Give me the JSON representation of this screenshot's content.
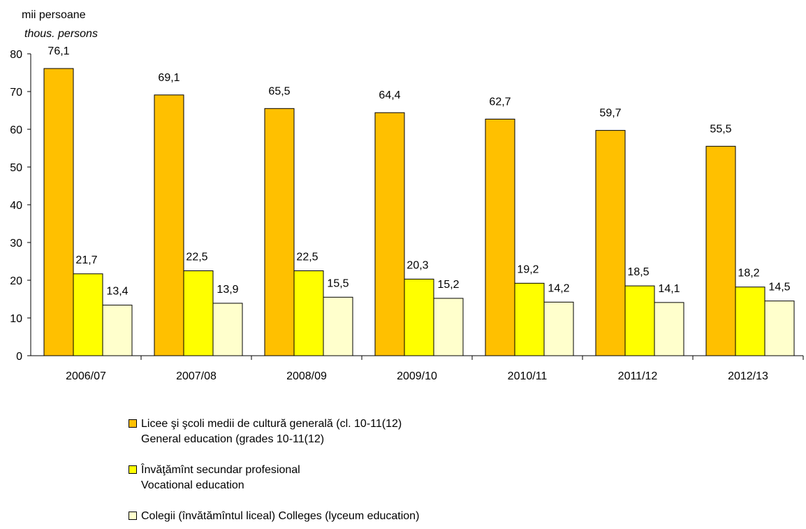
{
  "chart_data": {
    "type": "bar",
    "ylabel_ro": "mii persoane",
    "ylabel_en": "thous. persons",
    "ylim": [
      0,
      80
    ],
    "yticks": [
      0,
      10,
      20,
      30,
      40,
      50,
      60,
      70,
      80
    ],
    "grid": false,
    "legend_position": "bottom",
    "categories": [
      "2006/07",
      "2007/08",
      "2008/09",
      "2009/10",
      "2010/11",
      "2011/12",
      "2012/13"
    ],
    "series": [
      {
        "name_ro": "Licee şi şcoli medii de cultură generală (cl. 10-11(12)",
        "name_en": "General education (grades 10-11(12)",
        "color": "#FFC000",
        "values": [
          76.1,
          69.1,
          65.5,
          64.4,
          62.7,
          59.7,
          55.5
        ],
        "labels": [
          "76,1",
          "69,1",
          "65,5",
          "64,4",
          "62,7",
          "59,7",
          "55,5"
        ]
      },
      {
        "name_ro": "Învăţămînt secundar profesional",
        "name_en": "Vocational education",
        "color": "#FFFF00",
        "values": [
          21.7,
          22.5,
          22.5,
          20.3,
          19.2,
          18.5,
          18.2
        ],
        "labels": [
          "21,7",
          "22,5",
          "22,5",
          "20,3",
          "19,2",
          "18,5",
          "18,2"
        ]
      },
      {
        "name_ro": "Colegii (învătămîntul liceal) Colleges (lyceum education)",
        "name_en": "",
        "color": "#FFFFCC",
        "values": [
          13.4,
          13.9,
          15.5,
          15.2,
          14.2,
          14.1,
          14.5
        ],
        "labels": [
          "13,4",
          "13,9",
          "15,5",
          "15,2",
          "14,2",
          "14,1",
          "14,5"
        ]
      }
    ]
  }
}
